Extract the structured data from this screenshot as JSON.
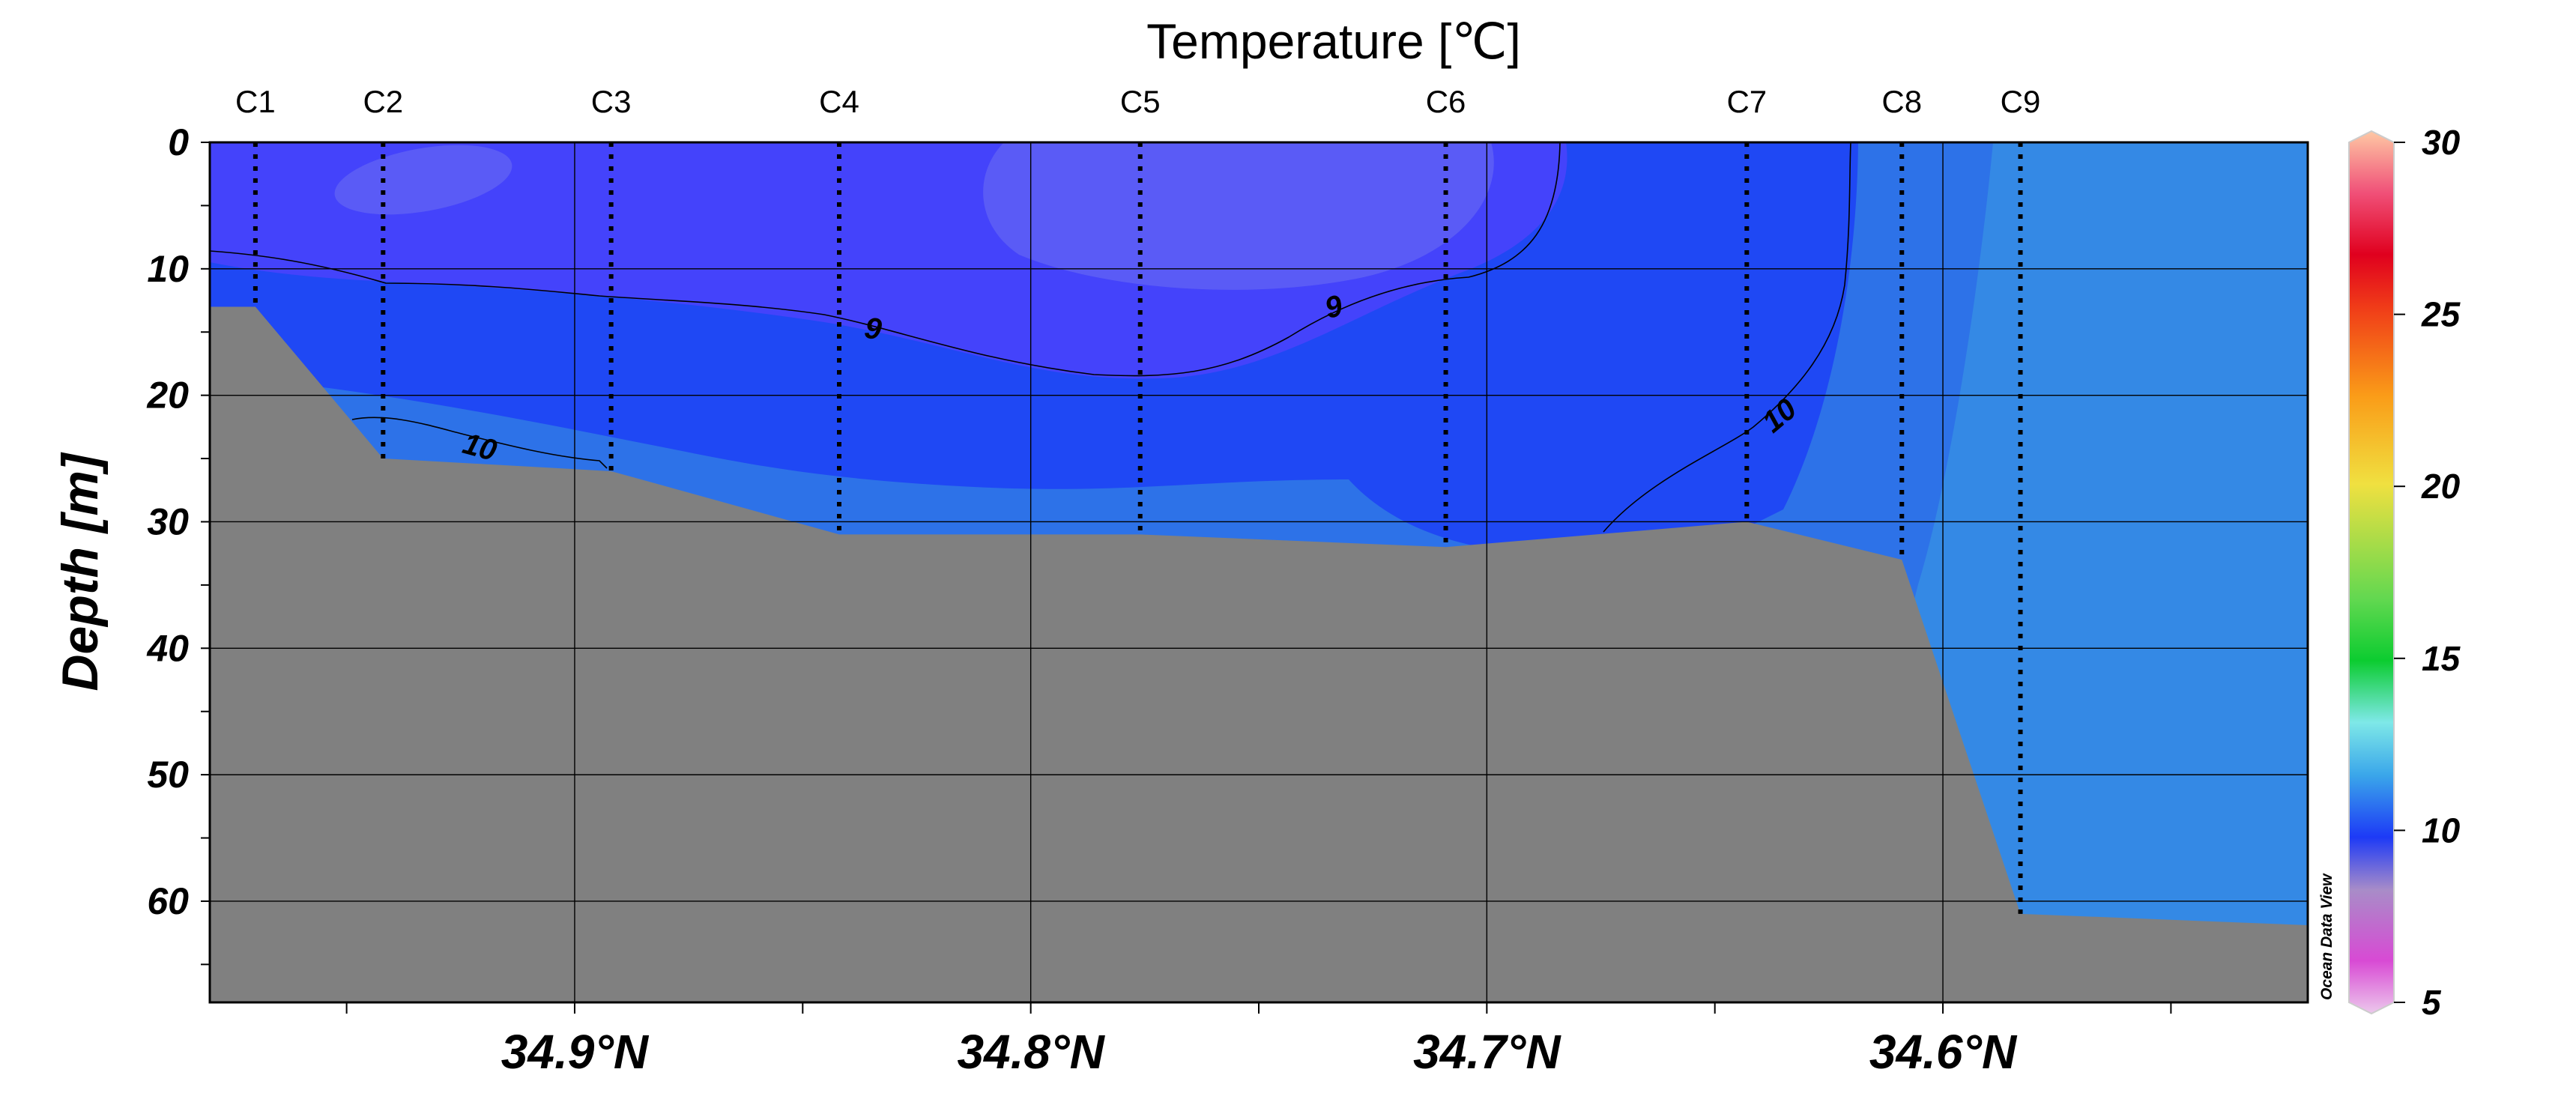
{
  "chart_data": {
    "type": "heatmap",
    "title": "Temperature [℃]",
    "ylabel": "Depth [m]",
    "xlabel": "",
    "x_ticks": [
      "34.9°N",
      "34.8°N",
      "34.7°N",
      "34.6°N"
    ],
    "x_tick_values": [
      34.9,
      34.8,
      34.7,
      34.6
    ],
    "xlim": [
      34.98,
      34.52
    ],
    "y_ticks": [
      "0",
      "10",
      "20",
      "30",
      "40",
      "50",
      "60"
    ],
    "y_tick_values": [
      0,
      10,
      20,
      30,
      40,
      50,
      60
    ],
    "ylim": [
      0,
      68
    ],
    "grid": true,
    "stations": [
      {
        "name": "C1",
        "lat": 34.97,
        "depth": 13
      },
      {
        "name": "C2",
        "lat": 34.942,
        "depth": 25
      },
      {
        "name": "C3",
        "lat": 34.892,
        "depth": 26
      },
      {
        "name": "C4",
        "lat": 34.842,
        "depth": 31
      },
      {
        "name": "C5",
        "lat": 34.776,
        "depth": 31
      },
      {
        "name": "C6",
        "lat": 34.709,
        "depth": 32
      },
      {
        "name": "C7",
        "lat": 34.643,
        "depth": 30
      },
      {
        "name": "C8",
        "lat": 34.609,
        "depth": 33
      },
      {
        "name": "C9",
        "lat": 34.583,
        "depth": 61
      }
    ],
    "contours": [
      {
        "level": "9",
        "label": "9"
      },
      {
        "level": "10",
        "label": "10"
      }
    ],
    "colorbar": {
      "range": [
        5,
        30
      ],
      "ticks": [
        "5",
        "10",
        "15",
        "20",
        "25",
        "30"
      ],
      "tick_values": [
        5,
        10,
        15,
        20,
        25,
        30
      ]
    },
    "temperature_field": {
      "zones": [
        "8-9",
        "9-10",
        "10-11",
        "11-12"
      ],
      "colors": [
        "#4443fb",
        "#1f48f4",
        "#2d72e8",
        "#3489e5"
      ]
    },
    "bathymetry_color": "#808080",
    "watermark": "Ocean Data View"
  }
}
